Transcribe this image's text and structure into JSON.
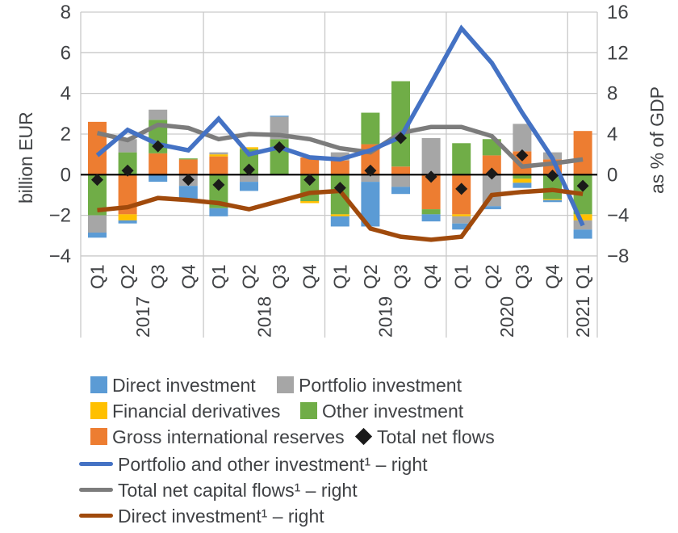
{
  "chart_data": {
    "type": "bar",
    "subtype": "stacked-bar-with-lines-combo",
    "quarters": [
      "Q1",
      "Q2",
      "Q3",
      "Q4",
      "Q1",
      "Q2",
      "Q3",
      "Q4",
      "Q1",
      "Q2",
      "Q3",
      "Q4",
      "Q1",
      "Q2",
      "Q3",
      "Q4",
      "Q1"
    ],
    "years": [
      {
        "label": "2017",
        "span": 4
      },
      {
        "label": "2018",
        "span": 4
      },
      {
        "label": "2019",
        "span": 4
      },
      {
        "label": "2020",
        "span": 4
      },
      {
        "label": "2021",
        "span": 1
      }
    ],
    "left_axis": {
      "label": "billion EUR",
      "range": [
        -4,
        8
      ],
      "ticks": [
        {
          "v": 8,
          "label": "8"
        },
        {
          "v": 6,
          "label": "6"
        },
        {
          "v": 4,
          "label": "4"
        },
        {
          "v": 2,
          "label": "2"
        },
        {
          "v": 0,
          "label": "0"
        },
        {
          "v": -2,
          "label": "−2"
        },
        {
          "v": -4,
          "label": "−4"
        }
      ]
    },
    "right_axis": {
      "label": "as % of GDP",
      "range": [
        -8,
        16
      ],
      "ticks": [
        {
          "v": 16,
          "label": "16"
        },
        {
          "v": 12,
          "label": "12"
        },
        {
          "v": 8,
          "label": "8"
        },
        {
          "v": 4,
          "label": "4"
        },
        {
          "v": 0,
          "label": "0"
        },
        {
          "v": -4,
          "label": "−4"
        },
        {
          "v": -8,
          "label": "−8"
        }
      ]
    },
    "bar_unit": "billion EUR",
    "bar_series": [
      {
        "id": "gross-international-reserves",
        "name": "Gross international reserves",
        "color": "#ED7D31",
        "values": [
          2.6,
          -1.95,
          1.05,
          0.75,
          0.9,
          0,
          0,
          0.85,
          0.7,
          1.5,
          0.4,
          -1.7,
          -1.95,
          0.95,
          1.15,
          0.75,
          2.15
        ]
      },
      {
        "id": "other-investment",
        "name": "Other investment",
        "color": "#70AD47",
        "values": [
          -2.0,
          1.1,
          1.65,
          0.05,
          -1.65,
          1.25,
          1.75,
          -1.3,
          -1.95,
          1.55,
          4.2,
          -0.25,
          1.55,
          0.8,
          -0.2,
          -1.2,
          -1.95
        ]
      },
      {
        "id": "financial-derivatives",
        "name": "Financial derivatives",
        "color": "#FFC000",
        "values": [
          0,
          -0.3,
          0,
          0,
          0.1,
          0.1,
          0,
          -0.1,
          -0.1,
          0,
          0,
          0,
          -0.1,
          0,
          -0.2,
          -0.05,
          -0.3
        ]
      },
      {
        "id": "portfolio-investment",
        "name": "Portfolio investment",
        "color": "#A6A6A6",
        "values": [
          -0.85,
          0.65,
          0.5,
          -0.55,
          0.1,
          -0.35,
          1.1,
          0,
          0.4,
          -0.35,
          -0.6,
          1.8,
          -0.35,
          -1.55,
          1.35,
          0.35,
          -0.45
        ]
      },
      {
        "id": "direct-investment",
        "name": "Direct investment",
        "color": "#5B9BD5",
        "values": [
          -0.25,
          -0.15,
          -0.35,
          -0.65,
          -0.4,
          -0.45,
          0.05,
          0,
          -0.5,
          -2.2,
          -0.35,
          -0.35,
          -0.3,
          -0.15,
          -0.25,
          -0.1,
          -0.45
        ]
      }
    ],
    "marker_series": {
      "id": "total-net-flows",
      "name": "Total net flows",
      "color": "#1A1A1A",
      "axis": "left",
      "values": [
        -0.25,
        0.2,
        1.4,
        -0.25,
        -0.5,
        0.25,
        1.35,
        -0.25,
        -0.65,
        0.2,
        1.8,
        -0.1,
        -0.7,
        0.05,
        0.95,
        -0.05,
        -0.55
      ]
    },
    "line_unit": "% of GDP",
    "line_series": [
      {
        "id": "total-net-capital-flows",
        "name": "Total net capital flows¹ – right",
        "color": "#7C7C7C",
        "axis": "right",
        "values": [
          4.1,
          3.4,
          4.9,
          4.6,
          3.5,
          4.0,
          3.9,
          3.5,
          2.6,
          2.2,
          4.1,
          4.7,
          4.7,
          3.8,
          0.8,
          1.1,
          1.5
        ]
      },
      {
        "id": "portfolio-and-other-investment",
        "name": "Portfolio and other investment¹ – right",
        "color": "#4472C4",
        "axis": "right",
        "values": [
          1.9,
          4.4,
          3.0,
          2.4,
          5.5,
          2.0,
          2.7,
          1.7,
          1.5,
          2.4,
          3.7,
          9.0,
          14.4,
          11.0,
          6.1,
          1.6,
          -5.0
        ]
      },
      {
        "id": "direct-investment-pct",
        "name": "Direct investment¹ – right",
        "color": "#A04A0C",
        "axis": "right",
        "values": [
          -3.5,
          -3.2,
          -2.3,
          -2.5,
          -2.8,
          -3.4,
          -2.6,
          -1.8,
          -1.6,
          -5.3,
          -6.1,
          -6.4,
          -6.1,
          -2.0,
          -1.7,
          -1.5,
          -1.9
        ]
      }
    ],
    "style": {
      "grid_color": "#C9C9C9",
      "zero_line_color": "#000000",
      "text_color": "#404245",
      "grid": true,
      "legend_position": "bottom"
    }
  },
  "legend": {
    "items": [
      {
        "label": "Direct investment"
      },
      {
        "label": "Portfolio investment"
      },
      {
        "label": "Financial derivatives"
      },
      {
        "label": "Other investment"
      },
      {
        "label": "Gross international reserves"
      },
      {
        "label": "Total net flows"
      },
      {
        "label": "Portfolio and other investment¹ – right"
      },
      {
        "label": "Total net capital flows¹ – right"
      },
      {
        "label": "Direct investment¹ – right"
      }
    ]
  }
}
